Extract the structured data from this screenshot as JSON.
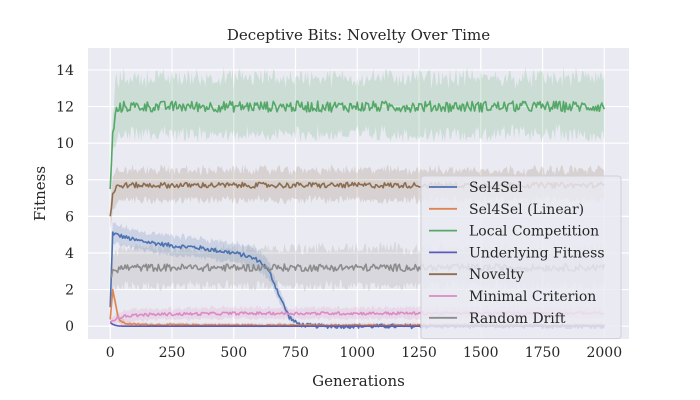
{
  "chart_data": {
    "type": "line",
    "title": "Deceptive Bits: Novelty Over Time",
    "xlabel": "Generations",
    "ylabel": "Fitness",
    "xlim": [
      -90,
      2100
    ],
    "ylim": [
      -0.7,
      15.2
    ],
    "xticks": [
      0,
      250,
      500,
      750,
      1000,
      1250,
      1500,
      1750,
      2000
    ],
    "yticks": [
      0,
      2,
      4,
      6,
      8,
      10,
      12,
      14
    ],
    "grid": true,
    "legend_position": "lower-right",
    "series": [
      {
        "name": "Sel4Sel",
        "color": "#4c72b0",
        "x": [
          0,
          10,
          25,
          50,
          100,
          150,
          200,
          250,
          300,
          350,
          400,
          450,
          500,
          550,
          600,
          625,
          650,
          675,
          700,
          725,
          750,
          775,
          800,
          850,
          900,
          1000,
          1250,
          1500,
          1750,
          2000
        ],
        "y": [
          1.0,
          5.1,
          5.0,
          4.9,
          4.7,
          4.6,
          4.5,
          4.4,
          4.35,
          4.3,
          4.2,
          4.1,
          4.0,
          3.85,
          3.6,
          3.3,
          2.8,
          2.0,
          1.2,
          0.5,
          0.2,
          0.08,
          0.03,
          0.01,
          0.0,
          0.0,
          0.0,
          0.0,
          0.0,
          0.0
        ],
        "band": [
          0.0,
          0.5,
          0.5,
          0.5,
          0.5,
          0.5,
          0.5,
          0.5,
          0.5,
          0.5,
          0.5,
          0.5,
          0.5,
          0.5,
          0.5,
          0.5,
          0.45,
          0.4,
          0.3,
          0.2,
          0.1,
          0.05,
          0.02,
          0.01,
          0.0,
          0.0,
          0.0,
          0.0,
          0.0,
          0.0
        ],
        "noise": 0.12
      },
      {
        "name": "Sel4Sel (Linear)",
        "color": "#dd8452",
        "x": [
          0,
          10,
          20,
          30,
          40,
          60,
          100,
          200,
          500,
          1000,
          1250,
          1500,
          1750,
          2000
        ],
        "y": [
          0.4,
          2.0,
          1.3,
          0.6,
          0.3,
          0.15,
          0.1,
          0.08,
          0.06,
          0.05,
          0.05,
          0.05,
          0.05,
          0.05
        ],
        "band": [
          0.2,
          0.3,
          0.3,
          0.25,
          0.2,
          0.15,
          0.1,
          0.1,
          0.1,
          0.1,
          0.1,
          0.1,
          0.1,
          0.1
        ],
        "noise": 0.04
      },
      {
        "name": "Local Competition",
        "color": "#55a868",
        "x": [
          0,
          10,
          25,
          50,
          100,
          2000
        ],
        "y": [
          7.3,
          10.5,
          11.8,
          12.0,
          12.0,
          12.0
        ],
        "band": [
          0.5,
          1.2,
          1.5,
          1.5,
          1.5,
          1.5
        ],
        "noise": 0.3
      },
      {
        "name": "Underlying Fitness",
        "color": "#5d5bb5",
        "x": [
          0,
          10,
          20,
          30,
          50,
          100,
          2000
        ],
        "y": [
          0.2,
          0.1,
          0.05,
          0.02,
          0.0,
          0.0,
          0.0
        ],
        "band": [
          0.1,
          0.05,
          0.05,
          0.02,
          0.0,
          0.0,
          0.0
        ],
        "noise": 0.0
      },
      {
        "name": "Novelty",
        "color": "#8c6d4f",
        "x": [
          0,
          10,
          25,
          50,
          100,
          2000
        ],
        "y": [
          6.0,
          7.2,
          7.6,
          7.7,
          7.7,
          7.7
        ],
        "band": [
          0.6,
          0.8,
          0.8,
          0.8,
          0.8,
          0.8
        ],
        "noise": 0.15
      },
      {
        "name": "Minimal Criterion",
        "color": "#da8bc3",
        "x": [
          0,
          10,
          30,
          60,
          100,
          200,
          500,
          1000,
          2000
        ],
        "y": [
          0.3,
          0.35,
          0.45,
          0.55,
          0.6,
          0.65,
          0.7,
          0.7,
          0.72
        ],
        "band": [
          0.15,
          0.2,
          0.3,
          0.3,
          0.3,
          0.3,
          0.3,
          0.3,
          0.3
        ],
        "noise": 0.08
      },
      {
        "name": "Random Drift",
        "color": "#8c8c8c",
        "x": [
          0,
          10,
          25,
          50,
          100,
          2000
        ],
        "y": [
          2.5,
          2.9,
          3.1,
          3.2,
          3.2,
          3.2
        ],
        "band": [
          0.8,
          0.9,
          1.0,
          1.0,
          1.0,
          1.0
        ],
        "noise": 0.2
      }
    ]
  }
}
